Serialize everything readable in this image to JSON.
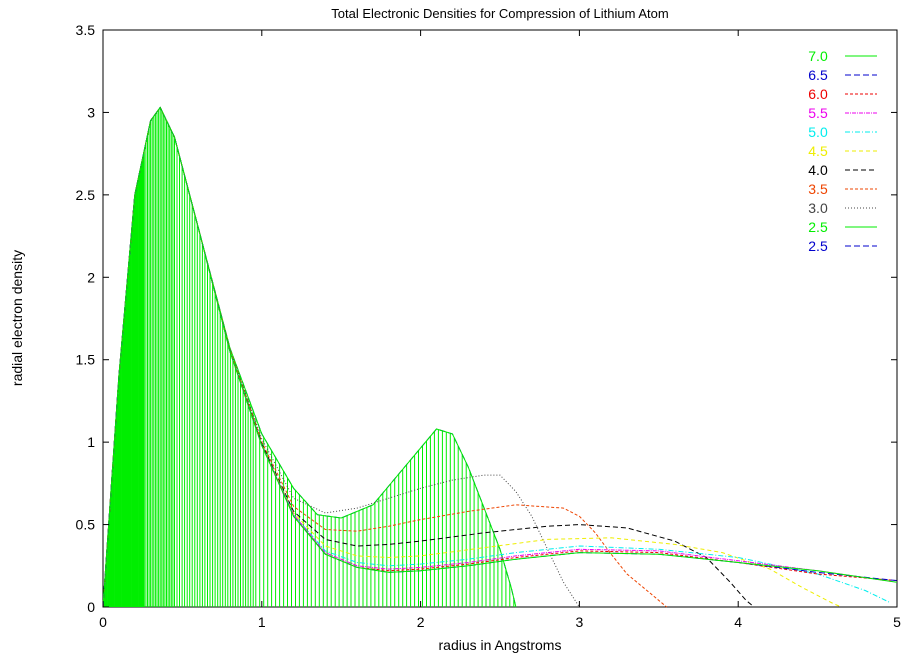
{
  "chart_data": {
    "type": "line",
    "title": "Total Electronic Densities for Compression of Lithium Atom",
    "xlabel": "radius in Angstroms",
    "ylabel": "radial electron density",
    "xlim": [
      0,
      5
    ],
    "ylim": [
      0,
      3.5
    ],
    "xticks": [
      "0",
      "1",
      "2",
      "3",
      "4",
      "5"
    ],
    "yticks": [
      "0",
      "0.5",
      "1",
      "1.5",
      "2",
      "2.5",
      "3",
      "3.5"
    ],
    "legend_position": "top-right",
    "series": [
      {
        "name": "7.0",
        "color": "#00ee00",
        "dash": "none",
        "points": [
          [
            0,
            0
          ],
          [
            0.1,
            1.4
          ],
          [
            0.2,
            2.5
          ],
          [
            0.3,
            2.95
          ],
          [
            0.36,
            3.03
          ],
          [
            0.45,
            2.85
          ],
          [
            0.6,
            2.3
          ],
          [
            0.8,
            1.55
          ],
          [
            1.0,
            0.98
          ],
          [
            1.2,
            0.55
          ],
          [
            1.4,
            0.32
          ],
          [
            1.6,
            0.24
          ],
          [
            1.8,
            0.21
          ],
          [
            2.0,
            0.22
          ],
          [
            2.3,
            0.25
          ],
          [
            2.6,
            0.29
          ],
          [
            3.0,
            0.33
          ],
          [
            3.5,
            0.32
          ],
          [
            4.0,
            0.27
          ],
          [
            4.5,
            0.22
          ],
          [
            5.0,
            0.15
          ]
        ]
      },
      {
        "name": "6.5",
        "color": "#0000cc",
        "dash": "6,3",
        "points": [
          [
            0,
            0
          ],
          [
            0.1,
            1.4
          ],
          [
            0.2,
            2.5
          ],
          [
            0.3,
            2.95
          ],
          [
            0.36,
            3.03
          ],
          [
            0.45,
            2.85
          ],
          [
            0.6,
            2.3
          ],
          [
            0.8,
            1.55
          ],
          [
            1.0,
            0.98
          ],
          [
            1.2,
            0.55
          ],
          [
            1.4,
            0.32
          ],
          [
            1.6,
            0.24
          ],
          [
            1.8,
            0.21
          ],
          [
            2.0,
            0.22
          ],
          [
            2.3,
            0.25
          ],
          [
            2.6,
            0.29
          ],
          [
            3.0,
            0.33
          ],
          [
            3.5,
            0.32
          ],
          [
            4.0,
            0.27
          ],
          [
            4.5,
            0.21
          ],
          [
            5.0,
            0.16
          ]
        ]
      },
      {
        "name": "6.0",
        "color": "#ee0000",
        "dash": "3,2",
        "points": [
          [
            0,
            0
          ],
          [
            0.1,
            1.4
          ],
          [
            0.2,
            2.5
          ],
          [
            0.3,
            2.95
          ],
          [
            0.36,
            3.03
          ],
          [
            0.45,
            2.85
          ],
          [
            0.6,
            2.3
          ],
          [
            0.8,
            1.55
          ],
          [
            1.0,
            0.98
          ],
          [
            1.2,
            0.55
          ],
          [
            1.4,
            0.32
          ],
          [
            1.6,
            0.24
          ],
          [
            1.8,
            0.22
          ],
          [
            2.0,
            0.23
          ],
          [
            2.3,
            0.26
          ],
          [
            2.6,
            0.3
          ],
          [
            3.0,
            0.34
          ],
          [
            3.5,
            0.33
          ],
          [
            4.0,
            0.27
          ],
          [
            4.5,
            0.2
          ],
          [
            5.0,
            0.16
          ]
        ]
      },
      {
        "name": "5.5",
        "color": "#ee00ee",
        "dash": "4,1,1,1",
        "points": [
          [
            0,
            0
          ],
          [
            0.1,
            1.4
          ],
          [
            0.2,
            2.5
          ],
          [
            0.3,
            2.95
          ],
          [
            0.36,
            3.03
          ],
          [
            0.45,
            2.85
          ],
          [
            0.6,
            2.3
          ],
          [
            0.8,
            1.55
          ],
          [
            1.0,
            0.98
          ],
          [
            1.2,
            0.56
          ],
          [
            1.4,
            0.33
          ],
          [
            1.6,
            0.25
          ],
          [
            1.8,
            0.23
          ],
          [
            2.0,
            0.24
          ],
          [
            2.3,
            0.27
          ],
          [
            2.6,
            0.31
          ],
          [
            3.0,
            0.35
          ],
          [
            3.5,
            0.34
          ],
          [
            4.0,
            0.28
          ],
          [
            4.5,
            0.22
          ],
          [
            5.0,
            0.15
          ]
        ]
      },
      {
        "name": "5.0",
        "color": "#00eeee",
        "dash": "5,2,1,2",
        "points": [
          [
            0,
            0
          ],
          [
            0.1,
            1.4
          ],
          [
            0.2,
            2.5
          ],
          [
            0.3,
            2.95
          ],
          [
            0.36,
            3.03
          ],
          [
            0.45,
            2.85
          ],
          [
            0.6,
            2.3
          ],
          [
            0.8,
            1.55
          ],
          [
            1.0,
            0.98
          ],
          [
            1.2,
            0.56
          ],
          [
            1.4,
            0.34
          ],
          [
            1.6,
            0.27
          ],
          [
            1.8,
            0.25
          ],
          [
            2.0,
            0.26
          ],
          [
            2.3,
            0.29
          ],
          [
            2.6,
            0.33
          ],
          [
            3.0,
            0.37
          ],
          [
            3.5,
            0.35
          ],
          [
            4.0,
            0.3
          ],
          [
            4.5,
            0.2
          ],
          [
            4.8,
            0.1
          ],
          [
            4.95,
            0.03
          ]
        ]
      },
      {
        "name": "4.5",
        "color": "#eeee00",
        "dash": "4,3",
        "points": [
          [
            0,
            0
          ],
          [
            0.1,
            1.4
          ],
          [
            0.2,
            2.5
          ],
          [
            0.3,
            2.95
          ],
          [
            0.36,
            3.03
          ],
          [
            0.45,
            2.85
          ],
          [
            0.6,
            2.3
          ],
          [
            0.8,
            1.55
          ],
          [
            1.0,
            0.98
          ],
          [
            1.2,
            0.57
          ],
          [
            1.4,
            0.37
          ],
          [
            1.6,
            0.31
          ],
          [
            1.8,
            0.3
          ],
          [
            2.0,
            0.31
          ],
          [
            2.4,
            0.36
          ],
          [
            2.8,
            0.41
          ],
          [
            3.2,
            0.42
          ],
          [
            3.6,
            0.38
          ],
          [
            3.9,
            0.33
          ],
          [
            4.2,
            0.23
          ],
          [
            4.4,
            0.12
          ],
          [
            4.6,
            0.02
          ],
          [
            4.65,
            0
          ]
        ]
      },
      {
        "name": "4.0",
        "color": "#000000",
        "dash": "5,3",
        "points": [
          [
            0,
            0
          ],
          [
            0.1,
            1.4
          ],
          [
            0.2,
            2.5
          ],
          [
            0.3,
            2.95
          ],
          [
            0.36,
            3.03
          ],
          [
            0.45,
            2.85
          ],
          [
            0.6,
            2.3
          ],
          [
            0.8,
            1.55
          ],
          [
            1.0,
            0.99
          ],
          [
            1.2,
            0.58
          ],
          [
            1.4,
            0.41
          ],
          [
            1.6,
            0.37
          ],
          [
            1.8,
            0.38
          ],
          [
            2.0,
            0.4
          ],
          [
            2.4,
            0.45
          ],
          [
            2.8,
            0.49
          ],
          [
            3.0,
            0.5
          ],
          [
            3.3,
            0.48
          ],
          [
            3.6,
            0.4
          ],
          [
            3.8,
            0.3
          ],
          [
            3.95,
            0.15
          ],
          [
            4.05,
            0.04
          ],
          [
            4.1,
            0
          ]
        ]
      },
      {
        "name": "3.5",
        "color": "#ee4400",
        "dash": "3,2",
        "points": [
          [
            0,
            0
          ],
          [
            0.1,
            1.4
          ],
          [
            0.2,
            2.5
          ],
          [
            0.3,
            2.95
          ],
          [
            0.36,
            3.03
          ],
          [
            0.45,
            2.85
          ],
          [
            0.6,
            2.3
          ],
          [
            0.8,
            1.56
          ],
          [
            1.0,
            1.0
          ],
          [
            1.2,
            0.61
          ],
          [
            1.4,
            0.47
          ],
          [
            1.6,
            0.46
          ],
          [
            1.8,
            0.49
          ],
          [
            2.0,
            0.53
          ],
          [
            2.3,
            0.58
          ],
          [
            2.6,
            0.62
          ],
          [
            2.9,
            0.6
          ],
          [
            3.0,
            0.55
          ],
          [
            3.1,
            0.45
          ],
          [
            3.2,
            0.32
          ],
          [
            3.3,
            0.2
          ],
          [
            3.45,
            0.08
          ],
          [
            3.55,
            0
          ]
        ]
      },
      {
        "name": "3.0",
        "color": "#444444",
        "dash": "1,2",
        "points": [
          [
            0,
            0
          ],
          [
            0.1,
            1.4
          ],
          [
            0.2,
            2.5
          ],
          [
            0.3,
            2.95
          ],
          [
            0.36,
            3.03
          ],
          [
            0.45,
            2.85
          ],
          [
            0.6,
            2.3
          ],
          [
            0.8,
            1.56
          ],
          [
            1.0,
            1.02
          ],
          [
            1.2,
            0.66
          ],
          [
            1.4,
            0.57
          ],
          [
            1.6,
            0.6
          ],
          [
            1.8,
            0.66
          ],
          [
            2.0,
            0.72
          ],
          [
            2.2,
            0.77
          ],
          [
            2.4,
            0.8
          ],
          [
            2.5,
            0.8
          ],
          [
            2.6,
            0.7
          ],
          [
            2.7,
            0.55
          ],
          [
            2.8,
            0.35
          ],
          [
            2.9,
            0.15
          ],
          [
            2.98,
            0.03
          ],
          [
            3.0,
            0
          ]
        ]
      },
      {
        "name": "2.5",
        "color": "#00ee00",
        "dash": "none",
        "points": [
          [
            0,
            0
          ],
          [
            0.1,
            1.4
          ],
          [
            0.2,
            2.5
          ],
          [
            0.3,
            2.95
          ],
          [
            0.36,
            3.03
          ],
          [
            0.45,
            2.85
          ],
          [
            0.6,
            2.3
          ],
          [
            0.8,
            1.57
          ],
          [
            1.0,
            1.05
          ],
          [
            1.2,
            0.72
          ],
          [
            1.35,
            0.56
          ],
          [
            1.5,
            0.54
          ],
          [
            1.7,
            0.62
          ],
          [
            1.9,
            0.85
          ],
          [
            2.1,
            1.08
          ],
          [
            2.2,
            1.05
          ],
          [
            2.3,
            0.85
          ],
          [
            2.4,
            0.6
          ],
          [
            2.5,
            0.35
          ],
          [
            2.57,
            0.12
          ],
          [
            2.6,
            0
          ]
        ]
      },
      {
        "name": "2.5",
        "color": "#0000cc",
        "dash": "6,3",
        "points": [
          [
            0,
            0
          ],
          [
            0.1,
            1.4
          ],
          [
            0.2,
            2.5
          ],
          [
            0.3,
            2.95
          ],
          [
            0.36,
            3.03
          ],
          [
            0.45,
            2.85
          ],
          [
            0.6,
            2.3
          ],
          [
            0.8,
            1.57
          ],
          [
            1.0,
            1.05
          ],
          [
            1.2,
            0.72
          ],
          [
            1.35,
            0.56
          ],
          [
            1.5,
            0.54
          ],
          [
            1.7,
            0.62
          ],
          [
            1.9,
            0.85
          ],
          [
            2.1,
            1.08
          ],
          [
            2.2,
            1.05
          ],
          [
            2.3,
            0.85
          ],
          [
            2.4,
            0.6
          ],
          [
            2.5,
            0.35
          ],
          [
            2.57,
            0.12
          ],
          [
            2.6,
            0
          ]
        ]
      }
    ]
  }
}
